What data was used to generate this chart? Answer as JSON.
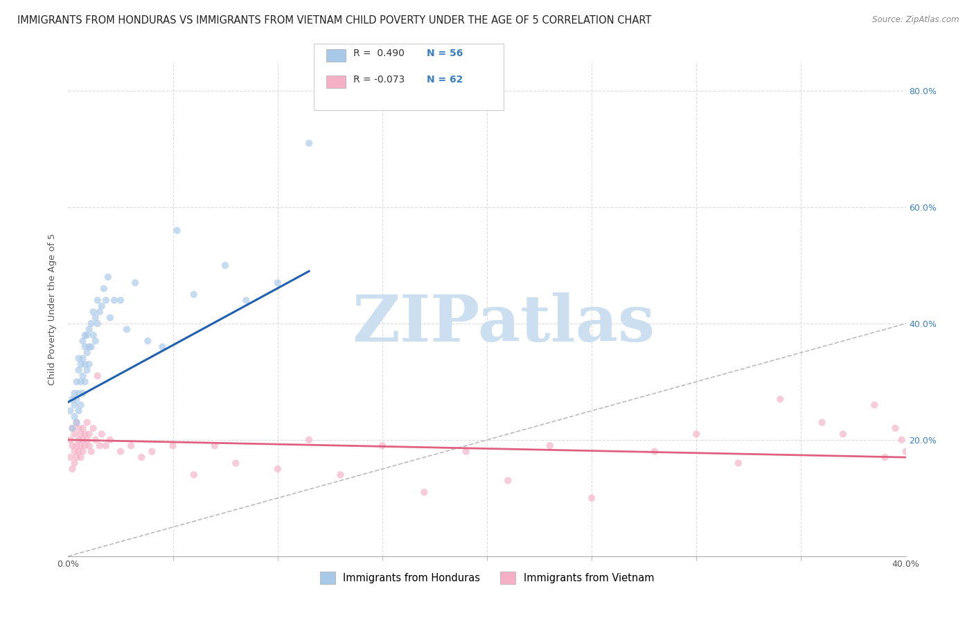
{
  "title": "IMMIGRANTS FROM HONDURAS VS IMMIGRANTS FROM VIETNAM CHILD POVERTY UNDER THE AGE OF 5 CORRELATION CHART",
  "source": "Source: ZipAtlas.com",
  "ylabel": "Child Poverty Under the Age of 5",
  "xmin": 0.0,
  "xmax": 0.4,
  "ymin": 0.0,
  "ymax": 0.85,
  "right_yticks": [
    0.2,
    0.4,
    0.6,
    0.8
  ],
  "right_yticklabels": [
    "20.0%",
    "40.0%",
    "60.0%",
    "80.0%"
  ],
  "x_minor_ticks": [
    0.05,
    0.1,
    0.15,
    0.2,
    0.25,
    0.3,
    0.35
  ],
  "legend_r_honduras": "R =  0.490",
  "legend_n_honduras": "N = 56",
  "legend_r_vietnam": "R = -0.073",
  "legend_n_vietnam": "N = 62",
  "legend_label_honduras": "Immigrants from Honduras",
  "legend_label_vietnam": "Immigrants from Vietnam",
  "honduras_color": "#a8c8e8",
  "vietnam_color": "#f5b0c5",
  "honduras_line_color": "#2060b0",
  "vietnam_line_color": "#e06080",
  "ref_line_color": "#bbbbbb",
  "watermark_text": "ZIPatlas",
  "watermark_color": "#ccdff0",
  "honduras_scatter_x": [
    0.001,
    0.002,
    0.002,
    0.003,
    0.003,
    0.003,
    0.004,
    0.004,
    0.004,
    0.005,
    0.005,
    0.005,
    0.005,
    0.006,
    0.006,
    0.006,
    0.007,
    0.007,
    0.007,
    0.007,
    0.008,
    0.008,
    0.008,
    0.008,
    0.009,
    0.009,
    0.009,
    0.01,
    0.01,
    0.01,
    0.011,
    0.011,
    0.012,
    0.012,
    0.013,
    0.013,
    0.014,
    0.014,
    0.015,
    0.016,
    0.017,
    0.018,
    0.019,
    0.02,
    0.022,
    0.025,
    0.028,
    0.032,
    0.038,
    0.045,
    0.052,
    0.06,
    0.075,
    0.085,
    0.1,
    0.115
  ],
  "honduras_scatter_y": [
    0.25,
    0.22,
    0.27,
    0.24,
    0.26,
    0.28,
    0.23,
    0.27,
    0.3,
    0.25,
    0.28,
    0.32,
    0.34,
    0.26,
    0.3,
    0.33,
    0.28,
    0.31,
    0.34,
    0.37,
    0.3,
    0.33,
    0.36,
    0.38,
    0.32,
    0.35,
    0.38,
    0.33,
    0.36,
    0.39,
    0.36,
    0.4,
    0.38,
    0.42,
    0.37,
    0.41,
    0.4,
    0.44,
    0.42,
    0.43,
    0.46,
    0.44,
    0.48,
    0.41,
    0.44,
    0.44,
    0.39,
    0.47,
    0.37,
    0.36,
    0.56,
    0.45,
    0.5,
    0.44,
    0.47,
    0.71
  ],
  "vietnam_scatter_x": [
    0.001,
    0.001,
    0.002,
    0.002,
    0.002,
    0.003,
    0.003,
    0.003,
    0.004,
    0.004,
    0.004,
    0.005,
    0.005,
    0.005,
    0.006,
    0.006,
    0.006,
    0.007,
    0.007,
    0.007,
    0.008,
    0.008,
    0.009,
    0.009,
    0.01,
    0.01,
    0.011,
    0.012,
    0.013,
    0.014,
    0.015,
    0.016,
    0.018,
    0.02,
    0.025,
    0.03,
    0.035,
    0.04,
    0.05,
    0.06,
    0.07,
    0.08,
    0.1,
    0.115,
    0.13,
    0.15,
    0.17,
    0.19,
    0.21,
    0.23,
    0.25,
    0.28,
    0.3,
    0.32,
    0.34,
    0.36,
    0.37,
    0.385,
    0.39,
    0.395,
    0.398,
    0.4
  ],
  "vietnam_scatter_y": [
    0.2,
    0.17,
    0.19,
    0.22,
    0.15,
    0.18,
    0.21,
    0.16,
    0.19,
    0.23,
    0.17,
    0.2,
    0.18,
    0.22,
    0.19,
    0.21,
    0.17,
    0.2,
    0.22,
    0.18,
    0.19,
    0.21,
    0.2,
    0.23,
    0.19,
    0.21,
    0.18,
    0.22,
    0.2,
    0.31,
    0.19,
    0.21,
    0.19,
    0.2,
    0.18,
    0.19,
    0.17,
    0.18,
    0.19,
    0.14,
    0.19,
    0.16,
    0.15,
    0.2,
    0.14,
    0.19,
    0.11,
    0.18,
    0.13,
    0.19,
    0.1,
    0.18,
    0.21,
    0.16,
    0.27,
    0.23,
    0.21,
    0.26,
    0.17,
    0.22,
    0.2,
    0.18
  ],
  "honduras_trend_x": [
    0.0,
    0.115
  ],
  "honduras_trend_y": [
    0.265,
    0.49
  ],
  "vietnam_trend_x": [
    0.0,
    0.4
  ],
  "vietnam_trend_y": [
    0.2,
    0.17
  ],
  "ref_line_x": [
    0.0,
    0.8
  ],
  "ref_line_y": [
    0.0,
    0.8
  ],
  "background_color": "#ffffff",
  "grid_color": "#dddddd",
  "title_fontsize": 10.5,
  "axis_label_fontsize": 9.5,
  "tick_fontsize": 9,
  "scatter_size": 55,
  "scatter_alpha": 0.65
}
